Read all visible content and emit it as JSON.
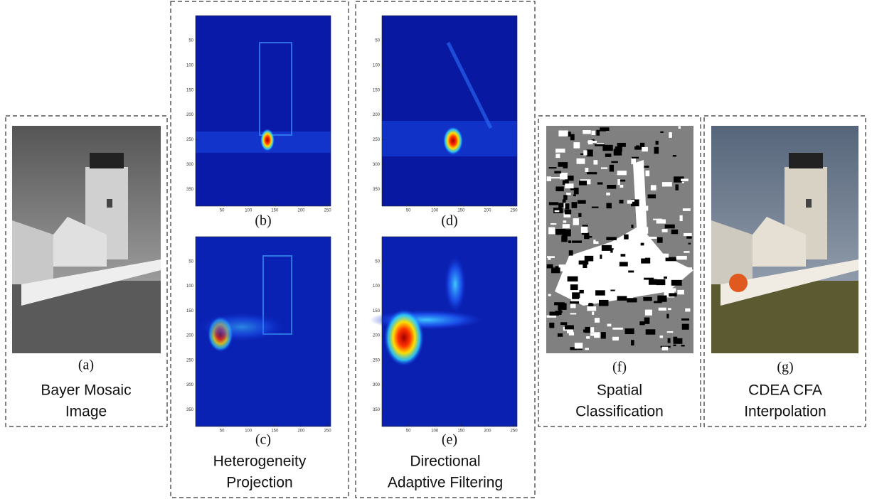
{
  "panels": [
    {
      "label": "(a)",
      "caption": [
        "Bayer Mosaic",
        "Image"
      ]
    },
    {
      "caption": [
        "Heterogeneity",
        "Projection"
      ],
      "plots": [
        {
          "label": "(b)",
          "xticks": [
            50,
            100,
            150,
            200,
            250
          ],
          "yticks": [
            50,
            100,
            150,
            200,
            250,
            300,
            350
          ]
        },
        {
          "label": "(c)",
          "xticks": [
            50,
            100,
            150,
            200,
            250
          ],
          "yticks": [
            50,
            100,
            150,
            200,
            250,
            300,
            350
          ]
        }
      ]
    },
    {
      "caption": [
        "Directional",
        "Adaptive Filtering"
      ],
      "plots": [
        {
          "label": "(d)",
          "xticks": [
            50,
            100,
            150,
            200,
            250
          ],
          "yticks": [
            50,
            100,
            150,
            200,
            250,
            300,
            350
          ]
        },
        {
          "label": "(e)",
          "xticks": [
            50,
            100,
            150,
            200,
            250
          ],
          "yticks": [
            50,
            100,
            150,
            200,
            250,
            300,
            350
          ]
        }
      ]
    },
    {
      "label": "(f)",
      "caption": [
        "Spatial",
        "Classification"
      ]
    },
    {
      "label": "(g)",
      "caption": [
        "CDEA CFA",
        "Interpolation"
      ]
    }
  ],
  "axis": {
    "xlim": [
      0,
      256
    ],
    "ylim": [
      0,
      384
    ]
  }
}
